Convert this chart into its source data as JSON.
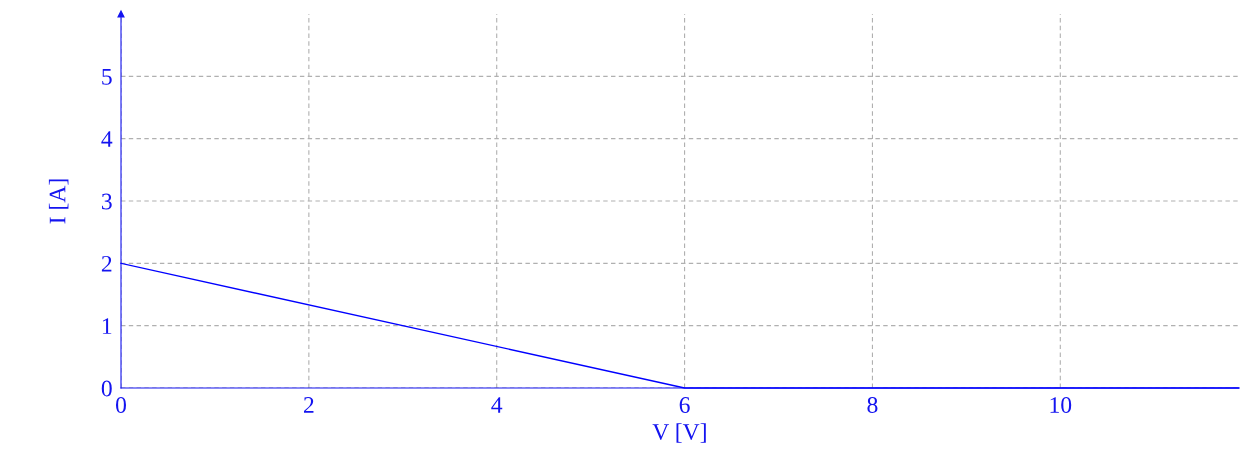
{
  "chart_data": {
    "type": "line",
    "xlabel": "V [V]",
    "ylabel": "I [A]",
    "series": [
      {
        "color": "#0000ff",
        "x": [
          0,
          6,
          11.9
        ],
        "values": [
          2,
          0,
          0
        ]
      }
    ],
    "xlim": [
      0,
      11.9
    ],
    "ylim": [
      0,
      6
    ],
    "xticks": [
      0,
      2,
      4,
      6,
      8,
      10
    ],
    "yticks": [
      0,
      1,
      2,
      3,
      4,
      5
    ],
    "grid": true,
    "marker": "none",
    "line_style": "solid"
  }
}
